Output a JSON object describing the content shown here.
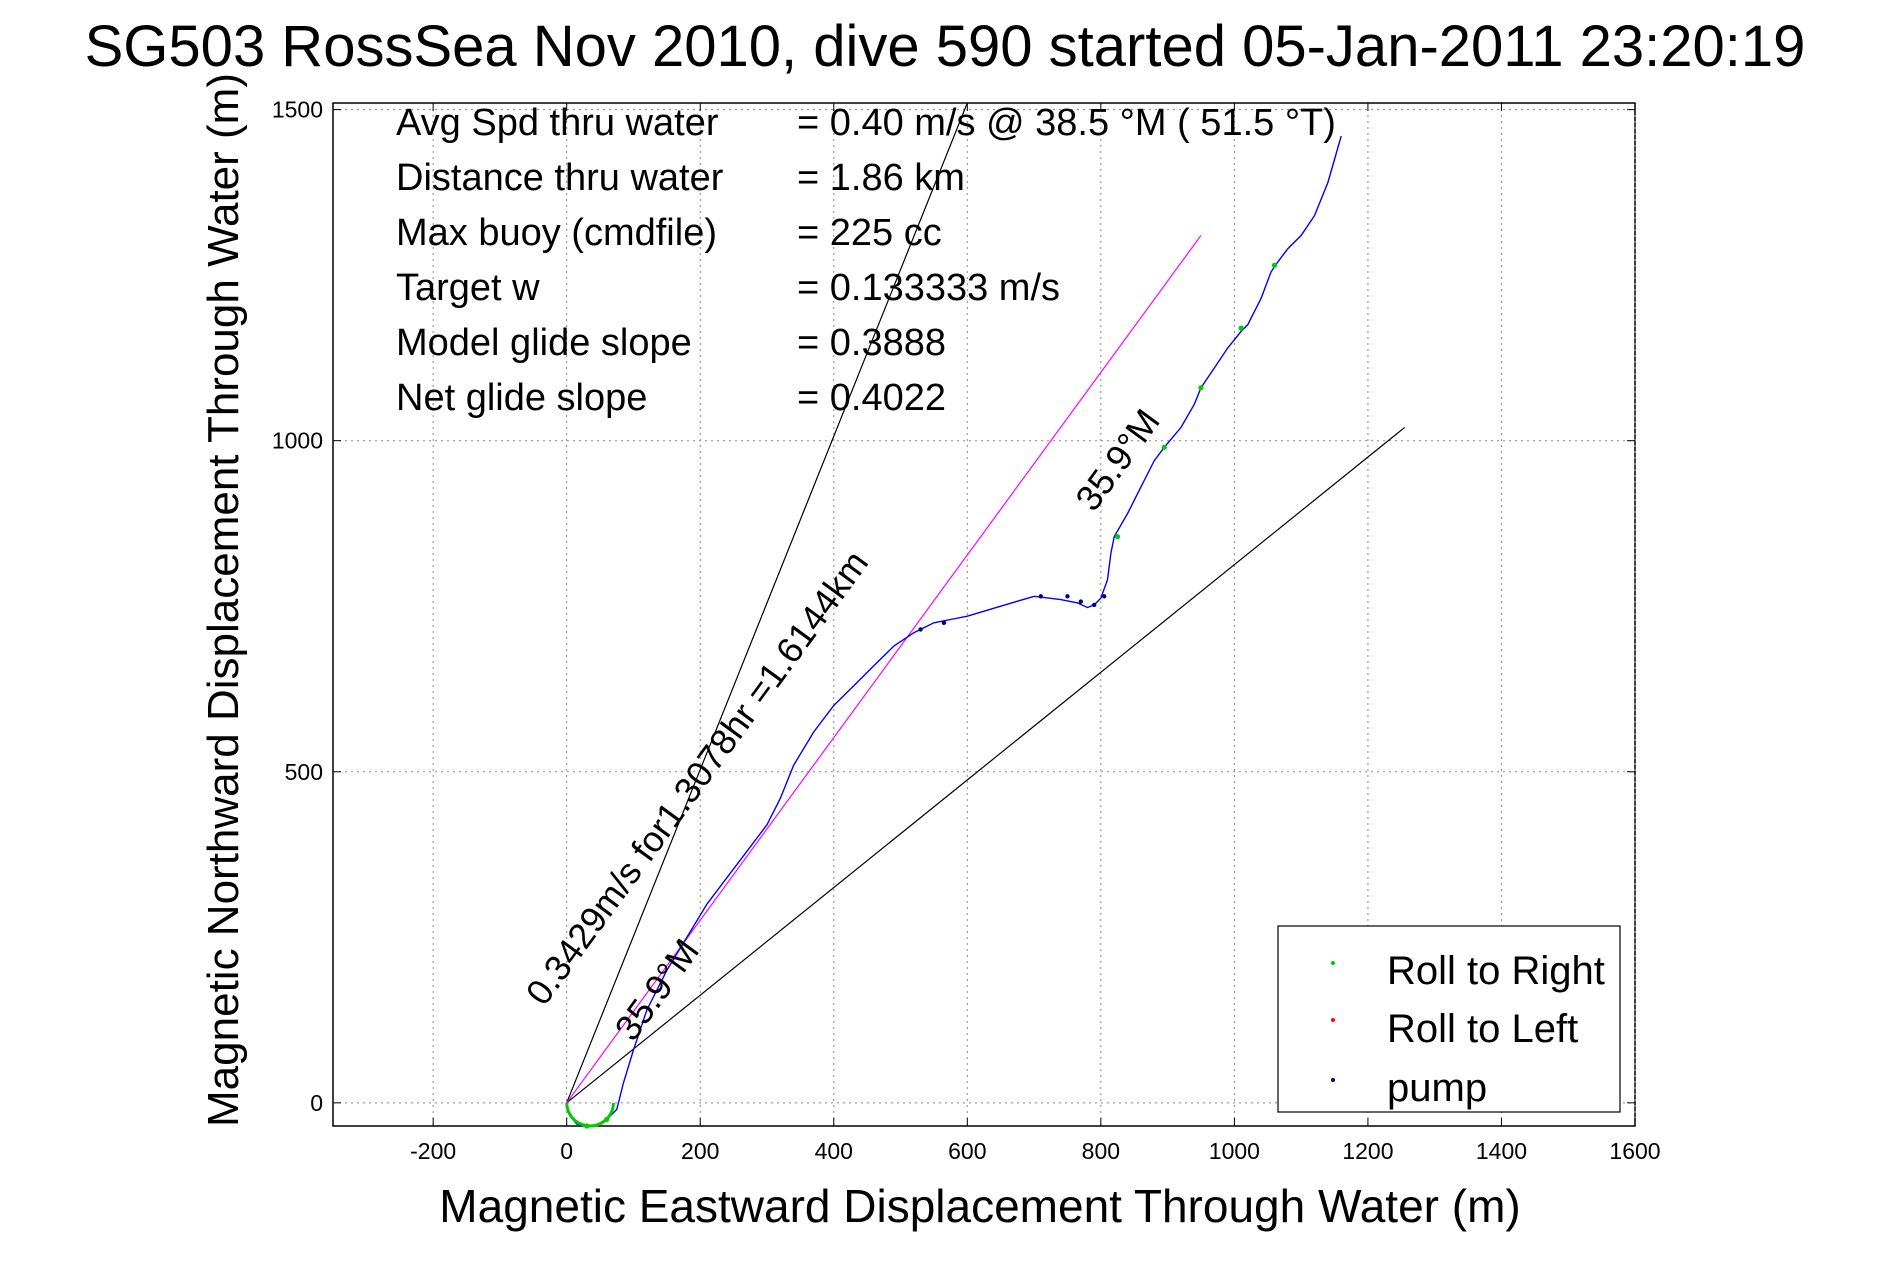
{
  "chart_data": {
    "type": "line",
    "title": "SG503 RossSea Nov 2010, dive 590 started 05-Jan-2011 23:20:19",
    "xlabel": "Magnetic Eastward Displacement Through Water (m)",
    "ylabel": "Magnetic Northward Displacement Through Water (m)",
    "xlim": [
      -350,
      1600
    ],
    "ylim": [
      -35,
      1510
    ],
    "xticks": [
      -200,
      0,
      200,
      400,
      600,
      800,
      1000,
      1200,
      1400,
      1600
    ],
    "yticks": [
      0,
      500,
      1000,
      1500
    ],
    "grid": true,
    "legend_position": "bottom-right",
    "legend": [
      {
        "label": "Roll to Right",
        "color": "#00cc00"
      },
      {
        "label": "Roll to Left",
        "color": "#ff0000"
      },
      {
        "label": "pump",
        "color": "#000080"
      }
    ],
    "stats": [
      {
        "label": "Avg Spd thru water",
        "value": "=  0.40 m/s @  38.5 °M ( 51.5 °T)"
      },
      {
        "label": "Distance thru water",
        "value": "=  1.86 km"
      },
      {
        "label": "Max buoy (cmdfile)",
        "value": "= 225 cc"
      },
      {
        "label": "Target w",
        "value": "= 0.133333 m/s"
      },
      {
        "label": "Model glide slope",
        "value": "= 0.3888"
      },
      {
        "label": "Net glide slope",
        "value": "= 0.4022"
      }
    ],
    "annotations": [
      {
        "text": "0.3429m/s for1.3078hr =1.6144km",
        "x": 210,
        "y": 480
      },
      {
        "text": "35.9°M",
        "x": 150,
        "y": 160
      },
      {
        "text": "35.9°M",
        "x": 840,
        "y": 960
      }
    ],
    "reference_lines": [
      {
        "name": "bounding-line-north",
        "color": "#000000",
        "x": [
          0,
          600
        ],
        "y": [
          0,
          1510
        ]
      },
      {
        "name": "bounding-line-east",
        "color": "#000000",
        "x": [
          0,
          1255
        ],
        "y": [
          0,
          1020
        ]
      },
      {
        "name": "heading-line",
        "color": "#ff00ff",
        "x": [
          0,
          950
        ],
        "y": [
          0,
          1310
        ]
      }
    ],
    "series": [
      {
        "color": "#0000ff",
        "x": [
          0,
          5,
          15,
          30,
          45,
          60,
          75,
          85,
          100,
          120,
          150,
          180,
          210,
          240,
          270,
          300,
          320,
          340,
          370,
          400,
          430,
          460,
          490,
          520,
          550,
          575,
          600,
          650,
          700,
          740,
          765,
          780,
          790,
          800,
          810,
          815,
          820,
          840,
          860,
          880,
          895,
          920,
          940,
          950,
          970,
          990,
          1010,
          1020,
          1040,
          1055,
          1065,
          1080,
          1100,
          1120,
          1140,
          1160
        ],
        "y": [
          0,
          -20,
          -32,
          -35,
          -33,
          -25,
          -10,
          30,
          80,
          140,
          200,
          250,
          300,
          340,
          380,
          420,
          460,
          510,
          560,
          600,
          630,
          660,
          690,
          710,
          725,
          730,
          735,
          750,
          765,
          760,
          755,
          748,
          752,
          762,
          790,
          830,
          855,
          890,
          930,
          970,
          990,
          1020,
          1055,
          1080,
          1110,
          1140,
          1165,
          1175,
          1215,
          1255,
          1270,
          1290,
          1310,
          1340,
          1390,
          1460
        ]
      }
    ],
    "markers": {
      "roll_right": [
        [
          30,
          -35
        ],
        [
          60,
          -25
        ],
        [
          825,
          855
        ],
        [
          895,
          990
        ],
        [
          950,
          1080
        ],
        [
          1010,
          1170
        ],
        [
          1060,
          1265
        ]
      ],
      "pump": [
        [
          530,
          715
        ],
        [
          565,
          725
        ],
        [
          710,
          765
        ],
        [
          750,
          765
        ],
        [
          770,
          757
        ],
        [
          790,
          752
        ],
        [
          805,
          765
        ]
      ]
    }
  }
}
